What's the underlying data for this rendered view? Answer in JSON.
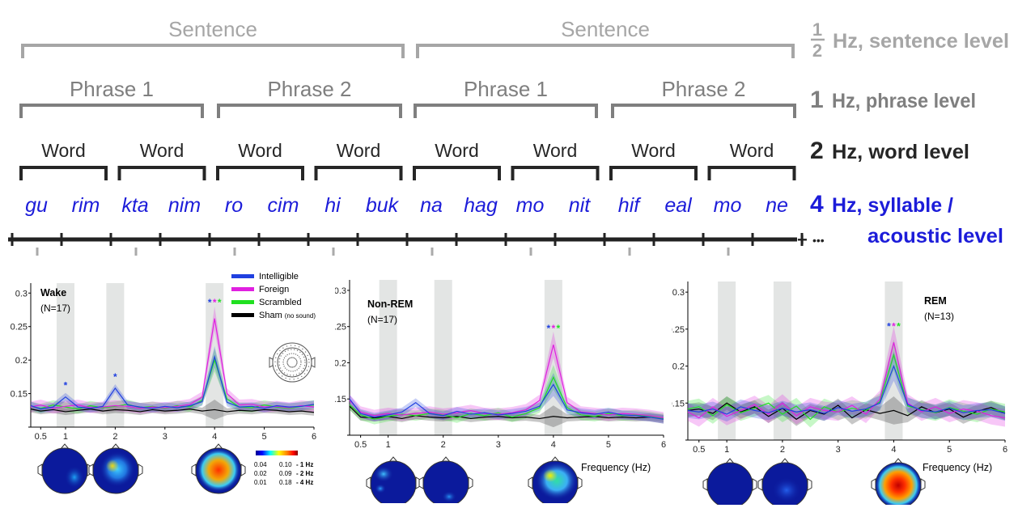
{
  "hierarchy": {
    "sentence_label": "Sentence",
    "phrase_labels": [
      "Phrase 1",
      "Phrase 2",
      "Phrase 1",
      "Phrase 2"
    ],
    "word_label": "Word",
    "syllables": [
      "gu",
      "rim",
      "kta",
      "nim",
      "ro",
      "cim",
      "hi",
      "buk",
      "na",
      "hag",
      "mo",
      "nit",
      "hif",
      "eal",
      "mo",
      "ne"
    ],
    "ellipsis": "•••",
    "levels": [
      {
        "num": "1/2",
        "text": "Hz, sentence level",
        "color": "#a6a6a6"
      },
      {
        "num": "1",
        "text": "Hz, phrase level",
        "color": "#7f7f7f"
      },
      {
        "num": "2",
        "text": "Hz, word level",
        "color": "#262626"
      },
      {
        "num": "4",
        "text": "Hz, syllable /",
        "text2": "acoustic level",
        "color": "#1c1cd9"
      }
    ]
  },
  "legend": {
    "entries": [
      {
        "label": "Intelligible",
        "color": "#2040e0"
      },
      {
        "label": "Foreign",
        "color": "#e020e0"
      },
      {
        "label": "Scrambled",
        "color": "#20e020"
      },
      {
        "label": "Sham",
        "sub": "(no sound)",
        "color": "#000000"
      }
    ]
  },
  "colorbar": {
    "rows": [
      {
        "min": "0.04",
        "max": "0.10",
        "freq": "- 1 Hz"
      },
      {
        "min": "0.02",
        "max": "0.09",
        "freq": "- 2 Hz"
      },
      {
        "min": "0.01",
        "max": "0.18",
        "freq": "- 4 Hz"
      }
    ]
  },
  "chart_data": [
    {
      "type": "line",
      "title": "Wake",
      "subtitle": "(N=17)",
      "xlabel": "",
      "ylabel": "",
      "xlim": [
        0.3,
        6
      ],
      "ylim": [
        0.1,
        0.31
      ],
      "xticks": [
        "0.5",
        "1",
        "2",
        "3",
        "4",
        "5",
        "6"
      ],
      "yticks": [
        "0.1",
        "0.15",
        "0.2",
        "0.25",
        "0.3"
      ],
      "highlight_bands": [
        1,
        2,
        4
      ],
      "stars": [
        {
          "x": 1,
          "colors": [
            "#2040e0"
          ]
        },
        {
          "x": 2,
          "colors": [
            "#2040e0"
          ]
        },
        {
          "x": 4,
          "colors": [
            "#2040e0",
            "#e020e0",
            "#20e020"
          ]
        }
      ],
      "series": [
        {
          "name": "Intelligible",
          "color": "#2040e0",
          "x": [
            0.3,
            0.5,
            0.75,
            1,
            1.25,
            1.5,
            1.75,
            2,
            2.25,
            2.5,
            2.75,
            3,
            3.25,
            3.5,
            3.75,
            4,
            4.25,
            4.5,
            4.75,
            5,
            5.25,
            5.5,
            5.75,
            6
          ],
          "y": [
            0.132,
            0.127,
            0.13,
            0.145,
            0.13,
            0.128,
            0.131,
            0.158,
            0.133,
            0.13,
            0.128,
            0.131,
            0.129,
            0.132,
            0.138,
            0.205,
            0.137,
            0.13,
            0.131,
            0.128,
            0.132,
            0.13,
            0.131,
            0.134
          ]
        },
        {
          "name": "Foreign",
          "color": "#e020e0",
          "x": [
            0.3,
            0.5,
            0.75,
            1,
            1.25,
            1.5,
            1.75,
            2,
            2.25,
            2.5,
            2.75,
            3,
            3.25,
            3.5,
            3.75,
            4,
            4.25,
            4.5,
            4.75,
            5,
            5.25,
            5.5,
            5.75,
            6
          ],
          "y": [
            0.13,
            0.133,
            0.128,
            0.131,
            0.133,
            0.129,
            0.13,
            0.132,
            0.131,
            0.128,
            0.13,
            0.129,
            0.131,
            0.134,
            0.145,
            0.262,
            0.15,
            0.133,
            0.134,
            0.13,
            0.131,
            0.129,
            0.132,
            0.13
          ]
        },
        {
          "name": "Scrambled",
          "color": "#20e020",
          "x": [
            0.3,
            0.5,
            0.75,
            1,
            1.25,
            1.5,
            1.75,
            2,
            2.25,
            2.5,
            2.75,
            3,
            3.25,
            3.5,
            3.75,
            4,
            4.25,
            4.5,
            4.75,
            5,
            5.25,
            5.5,
            5.75,
            6
          ],
          "y": [
            0.131,
            0.128,
            0.133,
            0.13,
            0.127,
            0.132,
            0.129,
            0.131,
            0.134,
            0.129,
            0.131,
            0.128,
            0.132,
            0.13,
            0.14,
            0.2,
            0.142,
            0.13,
            0.129,
            0.133,
            0.13,
            0.128,
            0.131,
            0.133
          ]
        },
        {
          "name": "Sham",
          "color": "#000000",
          "x": [
            0.3,
            0.5,
            0.75,
            1,
            1.25,
            1.5,
            1.75,
            2,
            2.25,
            2.5,
            2.75,
            3,
            3.25,
            3.5,
            3.75,
            4,
            4.25,
            4.5,
            4.75,
            5,
            5.25,
            5.5,
            5.75,
            6
          ],
          "y": [
            0.127,
            0.124,
            0.126,
            0.123,
            0.125,
            0.127,
            0.124,
            0.126,
            0.125,
            0.123,
            0.126,
            0.124,
            0.125,
            0.127,
            0.124,
            0.126,
            0.123,
            0.125,
            0.124,
            0.126,
            0.125,
            0.123,
            0.124,
            0.122
          ]
        }
      ]
    },
    {
      "type": "line",
      "title": "Non-REM",
      "subtitle": "(N=17)",
      "xlabel": "Frequency (Hz)",
      "ylabel": "",
      "xlim": [
        0.3,
        6
      ],
      "ylim": [
        0.1,
        0.31
      ],
      "xticks": [
        "0.5",
        "1",
        "2",
        "3",
        "4",
        "5",
        "6"
      ],
      "yticks": [
        "0.1",
        "0.15",
        "0.2",
        "0.25",
        "0.3"
      ],
      "highlight_bands": [
        1,
        2,
        4
      ],
      "stars": [
        {
          "x": 4,
          "colors": [
            "#2040e0",
            "#e020e0",
            "#20e020"
          ]
        }
      ],
      "series": [
        {
          "name": "Intelligible",
          "color": "#2040e0",
          "x": [
            0.3,
            0.5,
            0.75,
            1,
            1.25,
            1.5,
            1.75,
            2,
            2.25,
            2.5,
            2.75,
            3,
            3.25,
            3.5,
            3.75,
            4,
            4.25,
            4.5,
            4.75,
            5,
            5.25,
            5.5,
            5.75,
            6
          ],
          "y": [
            0.15,
            0.13,
            0.125,
            0.128,
            0.132,
            0.145,
            0.13,
            0.127,
            0.133,
            0.129,
            0.131,
            0.128,
            0.13,
            0.133,
            0.14,
            0.17,
            0.135,
            0.131,
            0.129,
            0.132,
            0.128,
            0.127,
            0.125,
            0.122
          ]
        },
        {
          "name": "Foreign",
          "color": "#e020e0",
          "x": [
            0.3,
            0.5,
            0.75,
            1,
            1.25,
            1.5,
            1.75,
            2,
            2.25,
            2.5,
            2.75,
            3,
            3.25,
            3.5,
            3.75,
            4,
            4.25,
            4.5,
            4.75,
            5,
            5.25,
            5.5,
            5.75,
            6
          ],
          "y": [
            0.148,
            0.132,
            0.127,
            0.13,
            0.128,
            0.13,
            0.132,
            0.129,
            0.131,
            0.134,
            0.13,
            0.129,
            0.131,
            0.135,
            0.148,
            0.225,
            0.145,
            0.132,
            0.13,
            0.128,
            0.13,
            0.129,
            0.127,
            0.124
          ]
        },
        {
          "name": "Scrambled",
          "color": "#20e020",
          "x": [
            0.3,
            0.5,
            0.75,
            1,
            1.25,
            1.5,
            1.75,
            2,
            2.25,
            2.5,
            2.75,
            3,
            3.25,
            3.5,
            3.75,
            4,
            4.25,
            4.5,
            4.75,
            5,
            5.25,
            5.5,
            5.75,
            6
          ],
          "y": [
            0.142,
            0.128,
            0.122,
            0.126,
            0.129,
            0.127,
            0.13,
            0.128,
            0.124,
            0.13,
            0.127,
            0.131,
            0.125,
            0.13,
            0.138,
            0.18,
            0.138,
            0.128,
            0.126,
            0.13,
            0.127,
            0.128,
            0.126,
            0.123
          ]
        },
        {
          "name": "Sham",
          "color": "#000000",
          "x": [
            0.3,
            0.5,
            0.75,
            1,
            1.25,
            1.5,
            1.75,
            2,
            2.25,
            2.5,
            2.75,
            3,
            3.25,
            3.5,
            3.75,
            4,
            4.25,
            4.5,
            4.75,
            5,
            5.25,
            5.5,
            5.75,
            6
          ],
          "y": [
            0.14,
            0.125,
            0.124,
            0.126,
            0.123,
            0.127,
            0.125,
            0.124,
            0.126,
            0.123,
            0.125,
            0.126,
            0.124,
            0.125,
            0.123,
            0.126,
            0.124,
            0.125,
            0.126,
            0.124,
            0.125,
            0.124,
            0.125,
            0.123
          ]
        }
      ]
    },
    {
      "type": "line",
      "title": "REM",
      "subtitle": "(N=13)",
      "xlabel": "Frequency (Hz)",
      "ylabel": "",
      "xlim": [
        0.3,
        6
      ],
      "ylim": [
        0.1,
        0.31
      ],
      "xticks": [
        "0.5",
        "1",
        "2",
        "3",
        "4",
        "5",
        "6"
      ],
      "yticks": [
        "0.1",
        "0.15",
        "0.2",
        "0.25",
        "0.3"
      ],
      "highlight_bands": [
        1,
        2,
        4
      ],
      "stars": [
        {
          "x": 4,
          "colors": [
            "#2040e0",
            "#e020e0",
            "#20e020"
          ]
        }
      ],
      "series": [
        {
          "name": "Intelligible",
          "color": "#2040e0",
          "x": [
            0.3,
            0.5,
            0.75,
            1,
            1.25,
            1.5,
            1.75,
            2,
            2.25,
            2.5,
            2.75,
            3,
            3.25,
            3.5,
            3.75,
            4,
            4.25,
            4.5,
            4.75,
            5,
            5.25,
            5.5,
            5.75,
            6
          ],
          "y": [
            0.14,
            0.138,
            0.142,
            0.135,
            0.145,
            0.14,
            0.137,
            0.143,
            0.138,
            0.141,
            0.136,
            0.144,
            0.139,
            0.142,
            0.15,
            0.2,
            0.148,
            0.14,
            0.138,
            0.143,
            0.137,
            0.14,
            0.141,
            0.136
          ]
        },
        {
          "name": "Foreign",
          "color": "#e020e0",
          "x": [
            0.3,
            0.5,
            0.75,
            1,
            1.25,
            1.5,
            1.75,
            2,
            2.25,
            2.5,
            2.75,
            3,
            3.25,
            3.5,
            3.75,
            4,
            4.25,
            4.5,
            4.75,
            5,
            5.25,
            5.5,
            5.75,
            6
          ],
          "y": [
            0.138,
            0.13,
            0.145,
            0.132,
            0.14,
            0.148,
            0.135,
            0.15,
            0.133,
            0.145,
            0.14,
            0.138,
            0.147,
            0.135,
            0.155,
            0.232,
            0.15,
            0.138,
            0.145,
            0.136,
            0.142,
            0.139,
            0.133,
            0.13
          ]
        },
        {
          "name": "Scrambled",
          "color": "#20e020",
          "x": [
            0.3,
            0.5,
            0.75,
            1,
            1.25,
            1.5,
            1.75,
            2,
            2.25,
            2.5,
            2.75,
            3,
            3.25,
            3.5,
            3.75,
            4,
            4.25,
            4.5,
            4.75,
            5,
            5.25,
            5.5,
            5.75,
            6
          ],
          "y": [
            0.142,
            0.145,
            0.133,
            0.148,
            0.137,
            0.143,
            0.15,
            0.135,
            0.146,
            0.128,
            0.145,
            0.138,
            0.143,
            0.14,
            0.152,
            0.215,
            0.146,
            0.141,
            0.137,
            0.144,
            0.139,
            0.135,
            0.142,
            0.138
          ]
        },
        {
          "name": "Sham",
          "color": "#000000",
          "x": [
            0.3,
            0.5,
            0.75,
            1,
            1.25,
            1.5,
            1.75,
            2,
            2.25,
            2.5,
            2.75,
            3,
            3.25,
            3.5,
            3.75,
            4,
            4.25,
            4.5,
            4.75,
            5,
            5.25,
            5.5,
            5.75,
            6
          ],
          "y": [
            0.14,
            0.142,
            0.136,
            0.15,
            0.138,
            0.145,
            0.132,
            0.143,
            0.128,
            0.14,
            0.135,
            0.147,
            0.13,
            0.141,
            0.136,
            0.14,
            0.133,
            0.145,
            0.137,
            0.142,
            0.131,
            0.139,
            0.144,
            0.136
          ]
        }
      ]
    }
  ]
}
